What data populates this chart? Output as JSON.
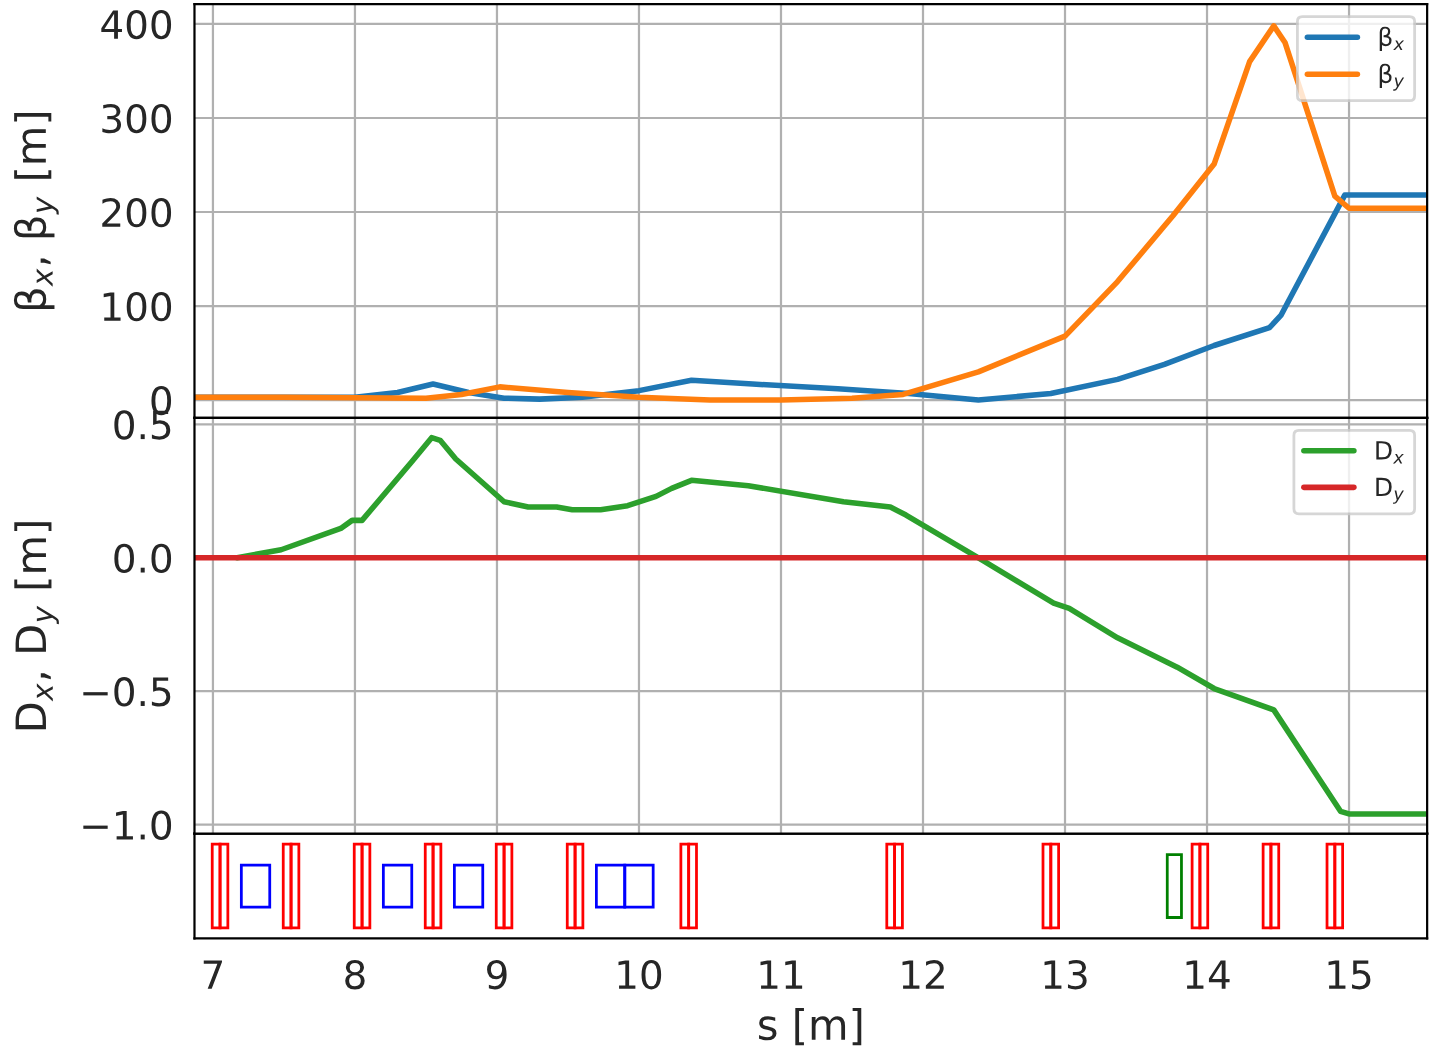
{
  "chart_data": [
    {
      "type": "line",
      "ylabel": "β$_{x}$, β$_{y}$ [m]",
      "xlim": [
        6.87,
        15.55
      ],
      "ylim": [
        -19,
        421
      ],
      "yticks": [
        0,
        100,
        200,
        300,
        400
      ],
      "grid": true,
      "legend": "top right",
      "tick_labels": "y",
      "series": [
        {
          "name": "β$_{x}$",
          "color": "#1f77b4",
          "x": [
            6.87,
            7.5,
            8.0,
            8.3,
            8.55,
            8.8,
            9.05,
            9.3,
            9.6,
            10.0,
            10.37,
            10.8,
            11.4,
            11.9,
            12.39,
            12.9,
            13.37,
            13.7,
            14.05,
            14.44,
            14.52,
            14.97,
            15.55
          ],
          "values": [
            3,
            3,
            3,
            8,
            17,
            8,
            2,
            1,
            3,
            10,
            21,
            17,
            12,
            7,
            0,
            7,
            22,
            38,
            58,
            77,
            90,
            218,
            218
          ]
        },
        {
          "name": "β$_{y}$",
          "color": "#ff7f0e",
          "x": [
            6.87,
            7.5,
            8.5,
            8.75,
            9.02,
            9.5,
            10.0,
            10.5,
            11.0,
            11.5,
            11.86,
            12.39,
            13.0,
            13.37,
            13.76,
            14.05,
            14.3,
            14.47,
            14.55,
            14.9,
            15.0,
            15.55
          ],
          "values": [
            3,
            3,
            2,
            6,
            14,
            8,
            3,
            0,
            0,
            2,
            6,
            30,
            68,
            126,
            196,
            251,
            360,
            398,
            380,
            217,
            204,
            204
          ]
        }
      ]
    },
    {
      "type": "line",
      "ylabel": "D$_{x}$, D$_{y}$ [m]",
      "xlabel": "s [m]",
      "xlim": [
        6.87,
        15.55
      ],
      "xticks": [
        7,
        8,
        9,
        10,
        11,
        12,
        13,
        14,
        15
      ],
      "ylim": [
        -1.034,
        0.524
      ],
      "yticks": [
        {
          "value": -1.0,
          "label": "−1.0"
        },
        {
          "value": -0.5,
          "label": "−0.5"
        },
        {
          "value": 0.0,
          "label": "0.0"
        },
        {
          "value": 0.5,
          "label": "0.5"
        }
      ],
      "grid": true,
      "legend": "top right",
      "series": [
        {
          "name": "D$_{x}$",
          "color": "#2ca02c",
          "x": [
            7.17,
            7.48,
            7.9,
            7.98,
            8.05,
            8.4,
            8.54,
            8.6,
            8.71,
            9.05,
            9.22,
            9.42,
            9.53,
            9.73,
            9.92,
            10.12,
            10.23,
            10.37,
            10.77,
            11.44,
            11.77,
            11.88,
            12.42,
            12.92,
            13.03,
            13.37,
            13.79,
            14.05,
            14.47,
            14.94,
            15.0,
            15.55
          ],
          "values": [
            0,
            0.03,
            0.11,
            0.14,
            0.14,
            0.36,
            0.45,
            0.44,
            0.37,
            0.21,
            0.19,
            0.19,
            0.18,
            0.18,
            0.195,
            0.23,
            0.26,
            0.29,
            0.27,
            0.21,
            0.19,
            0.16,
            -0.01,
            -0.17,
            -0.19,
            -0.3,
            -0.41,
            -0.49,
            -0.57,
            -0.95,
            -0.96,
            -0.96
          ]
        },
        {
          "name": "D$_{y}$",
          "color": "#d62728",
          "x": [
            6.87,
            15.55
          ],
          "values": [
            0,
            0
          ]
        }
      ]
    }
  ]
}
